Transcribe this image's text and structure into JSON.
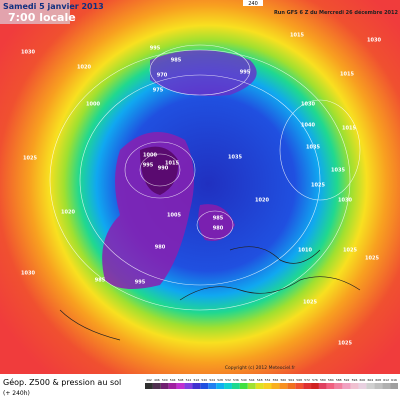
{
  "header": {
    "date": "Samedi 5 janvier 2013",
    "time": "7:00 locale",
    "run": "Run GFS 6 Z du Mercredi 26 décembre 2012",
    "step": "240"
  },
  "footer": {
    "field": "Géop. Z500 & pression au sol",
    "lead": "(+ 240h)",
    "copyright": "Copyright (c) 2012 Meteociel.fr"
  },
  "isobar_labels": [
    "1015",
    "1030",
    "1020",
    "1025",
    "1000",
    "1020",
    "1030",
    "995",
    "970",
    "985",
    "975",
    "995",
    "1030",
    "1040",
    "1035",
    "1000",
    "990",
    "995",
    "1015",
    "1005",
    "1020",
    "1010",
    "980",
    "985",
    "980",
    "985",
    "995",
    "1025",
    "1035",
    "1030",
    "1025",
    "1025",
    "1025",
    "1030",
    "1015",
    "1015",
    "1035",
    "1025"
  ],
  "colorbar_labels": [
    "492",
    "496",
    "500",
    "504",
    "508",
    "512",
    "516",
    "520",
    "524",
    "528",
    "532",
    "536",
    "540",
    "544",
    "548",
    "552",
    "556",
    "560",
    "564",
    "568",
    "572",
    "576",
    "580",
    "584",
    "588",
    "592",
    "596",
    "600",
    "604",
    "608",
    "612",
    "616"
  ]
}
